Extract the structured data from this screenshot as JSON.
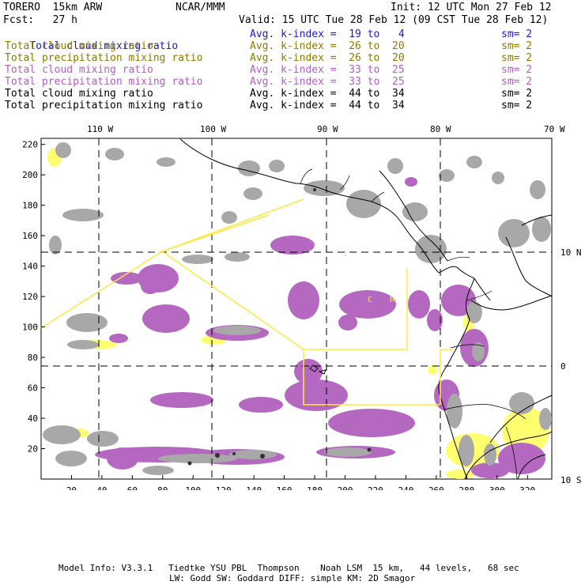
{
  "header": {
    "model": "TORERO  15km ARW",
    "center": "NCAR/MMM",
    "init": "Init: 12 UTC Mon 27 Feb 12",
    "fcst": "Fcst:   27 h",
    "valid": "Valid: 15 UTC Tue 28 Feb 12 (09 CST Tue 28 Feb 12)"
  },
  "legend": [
    {
      "field": "Total cloud mixing ratio",
      "stat": "Avg. k-index =  19 to   4",
      "sm": "sm= 2",
      "color": "#1a1acc"
    },
    {
      "field": "Total cloud mixing ratio",
      "stat": "Avg. k-index =  26 to  20",
      "sm": "sm= 2",
      "color": "#8c7a00"
    },
    {
      "field": "Total precipitation mixing ratio",
      "stat": "Avg. k-index =  26 to  20",
      "sm": "sm= 2",
      "color": "#8c7a00"
    },
    {
      "field": "Total cloud mixing ratio",
      "stat": "Avg. k-index =  33 to  25",
      "sm": "sm= 2",
      "color": "#b060c0"
    },
    {
      "field": "Total precipitation mixing ratio",
      "stat": "Avg. k-index =  33 to  25",
      "sm": "sm= 2",
      "color": "#b060c0"
    },
    {
      "field": "Total cloud mixing ratio",
      "stat": "Avg. k-index =  44 to  34",
      "sm": "sm= 2",
      "color": "#000000"
    },
    {
      "field": "Total precipitation mixing ratio",
      "stat": "Avg. k-index =  44 to  34",
      "sm": "sm= 2",
      "color": "#000000"
    }
  ],
  "axes": {
    "lon_labels": [
      "110 W",
      "100 W",
      "90 W",
      "80 W",
      "70 W"
    ],
    "lat_labels": [
      "10 N",
      "0",
      "10 S"
    ],
    "y_ticks": [
      "220",
      "200",
      "180",
      "160",
      "140",
      "120",
      "100",
      "80",
      "60",
      "40",
      "20"
    ],
    "x_ticks": [
      "20",
      "40",
      "60",
      "80",
      "100",
      "120",
      "140",
      "160",
      "180",
      "200",
      "220",
      "240",
      "260",
      "280",
      "300",
      "320"
    ]
  },
  "footer": {
    "line1": "Model Info: V3.3.1   Tiedtke YSU PBL  Thompson    Noah LSM  15 km,   44 levels,   68 sec",
    "line2": "LW: Godd SW: Goddard DIFF: simple KM: 2D Smagor"
  },
  "colors": {
    "cloud_gray": "#a8a8a8",
    "precip_purple": "#b468c0",
    "yellow": "#ffff70",
    "domain_line": "#ffe840"
  }
}
